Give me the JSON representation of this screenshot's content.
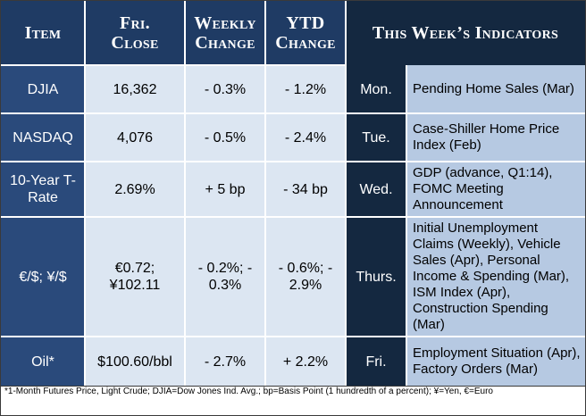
{
  "headers": {
    "item": "Item",
    "close_line1": "Fri.",
    "close_line2": "Close",
    "weekly_line1": "Weekly",
    "weekly_line2": "Change",
    "ytd_line1": "YTD",
    "ytd_line2": "Change",
    "indicators": "This Week’s Indicators"
  },
  "rows": [
    {
      "item": "DJIA",
      "close": "16,362",
      "weekly": "- 0.3%",
      "ytd": "- 1.2%",
      "day": "Mon.",
      "indicator": "Pending Home Sales (Mar)"
    },
    {
      "item": "NASDAQ",
      "close": "4,076",
      "weekly": "- 0.5%",
      "ytd": "- 2.4%",
      "day": "Tue.",
      "indicator": "Case-Shiller Home Price Index (Feb)"
    },
    {
      "item": "10-Year T-Rate",
      "close": "2.69%",
      "weekly": "+ 5 bp",
      "ytd": "- 34 bp",
      "day": "Wed.",
      "indicator": "GDP (advance, Q1:14), FOMC Meeting Announcement"
    },
    {
      "item": "€/$; ¥/$",
      "close": "€0.72; ¥102.11",
      "weekly": "- 0.2%; - 0.3%",
      "ytd": "- 0.6%; - 2.9%",
      "day": "Thurs.",
      "indicator": "Initial Unemployment Claims (Weekly), Vehicle Sales (Apr), Personal Income & Spending (Mar), ISM Index (Apr), Construction Spending (Mar)"
    },
    {
      "item": "Oil*",
      "close": "$100.60/bbl",
      "weekly": "- 2.7%",
      "ytd": "+ 2.2%",
      "day": "Fri.",
      "indicator": "Employment Situation (Apr), Factory Orders (Mar)"
    }
  ],
  "footnote": "*1-Month Futures Price, Light Crude; DJIA=Dow Jones Ind. Avg.; bp=Basis Point (1 hundredth of a percent); ¥=Yen, €=Euro"
}
